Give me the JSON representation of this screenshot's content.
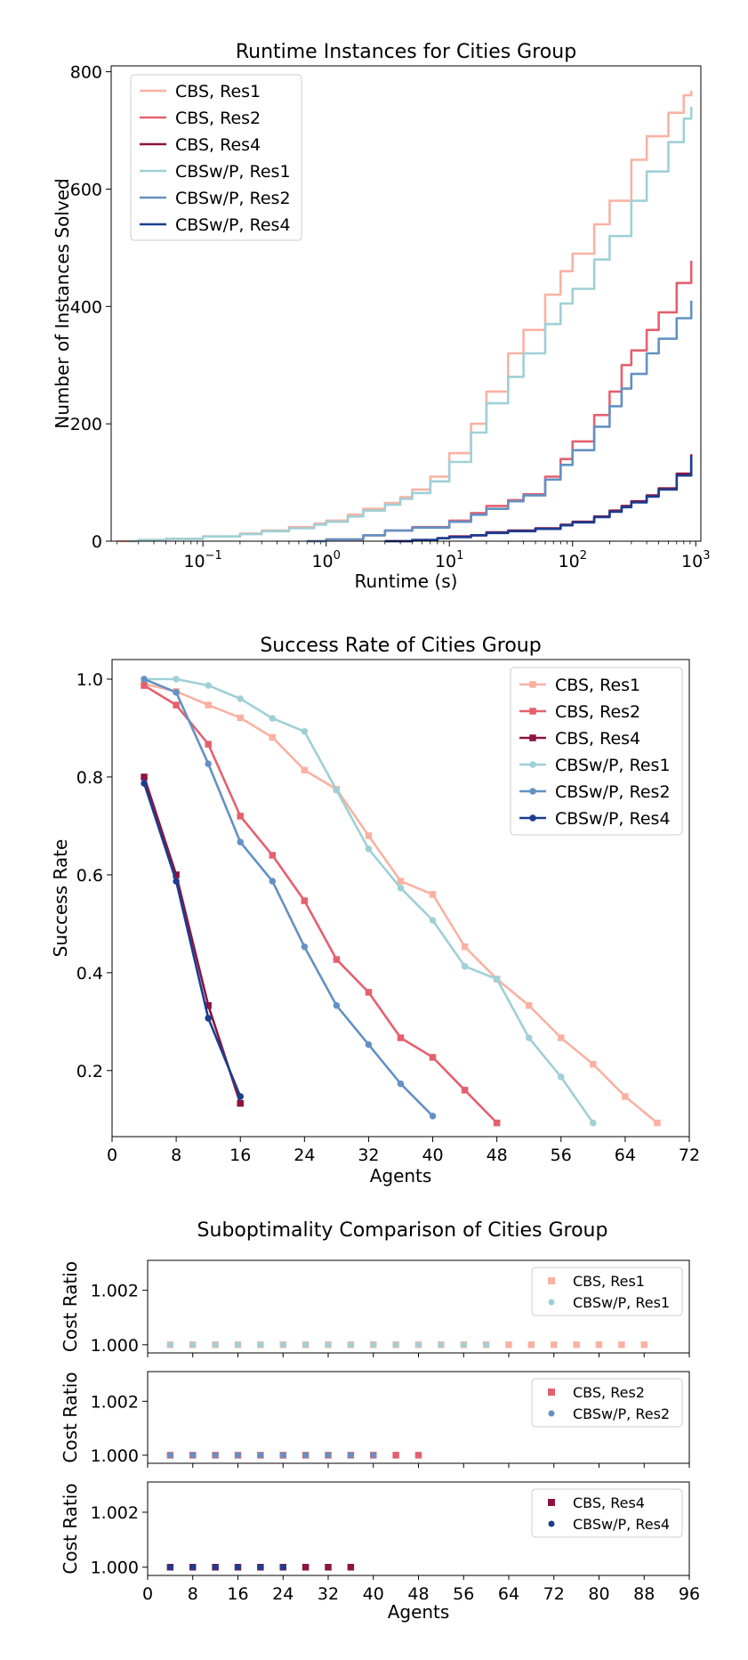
{
  "colors": {
    "cbs_res1": "#f9b2a2",
    "cbs_res2": "#e5606e",
    "cbs_res4": "#8b1440",
    "cbswp_res1": "#9fd0d6",
    "cbswp_res2": "#6391c3",
    "cbswp_res4": "#1a3d8f"
  },
  "chart_data": [
    {
      "type": "line",
      "title": "Runtime Instances for Cities Group",
      "xlabel": "Runtime (s)",
      "ylabel": "Number of Instances Solved",
      "xscale": "log",
      "xlim": [
        0.018,
        1100
      ],
      "ylim": [
        0,
        810
      ],
      "xtick_values": [
        0.1,
        1,
        10,
        100,
        1000
      ],
      "xtick_bases": [
        "10",
        "10",
        "10",
        "10",
        "10"
      ],
      "xtick_exps": [
        "−1",
        "0",
        "1",
        "2",
        "3"
      ],
      "yticks": [
        0,
        200,
        400,
        600,
        800
      ],
      "legend": "top-left",
      "series": [
        {
          "name": "CBS, Res1",
          "color_key": "cbs_res1",
          "points": [
            [
              0.02,
              0
            ],
            [
              0.03,
              2
            ],
            [
              0.05,
              4
            ],
            [
              0.1,
              8
            ],
            [
              0.2,
              13
            ],
            [
              0.3,
              18
            ],
            [
              0.5,
              24
            ],
            [
              0.8,
              30
            ],
            [
              1,
              35
            ],
            [
              1.5,
              45
            ],
            [
              2,
              55
            ],
            [
              3,
              65
            ],
            [
              4,
              75
            ],
            [
              5,
              88
            ],
            [
              7,
              110
            ],
            [
              10,
              150
            ],
            [
              15,
              200
            ],
            [
              20,
              255
            ],
            [
              30,
              320
            ],
            [
              40,
              360
            ],
            [
              60,
              420
            ],
            [
              80,
              460
            ],
            [
              100,
              490
            ],
            [
              150,
              540
            ],
            [
              200,
              580
            ],
            [
              300,
              650
            ],
            [
              400,
              690
            ],
            [
              600,
              730
            ],
            [
              800,
              760
            ],
            [
              920,
              768
            ]
          ]
        },
        {
          "name": "CBS, Res2",
          "color_key": "cbs_res2",
          "points": [
            [
              0.7,
              0
            ],
            [
              1,
              3
            ],
            [
              2,
              10
            ],
            [
              3,
              18
            ],
            [
              5,
              24
            ],
            [
              10,
              35
            ],
            [
              15,
              48
            ],
            [
              20,
              60
            ],
            [
              30,
              70
            ],
            [
              40,
              80
            ],
            [
              60,
              110
            ],
            [
              80,
              140
            ],
            [
              100,
              170
            ],
            [
              150,
              215
            ],
            [
              200,
              255
            ],
            [
              250,
              300
            ],
            [
              300,
              325
            ],
            [
              400,
              360
            ],
            [
              500,
              390
            ],
            [
              700,
              440
            ],
            [
              920,
              478
            ]
          ]
        },
        {
          "name": "CBS, Res4",
          "color_key": "cbs_res4",
          "points": [
            [
              3,
              0
            ],
            [
              5,
              2
            ],
            [
              8,
              5
            ],
            [
              10,
              8
            ],
            [
              15,
              10
            ],
            [
              20,
              15
            ],
            [
              30,
              18
            ],
            [
              50,
              22
            ],
            [
              80,
              28
            ],
            [
              100,
              33
            ],
            [
              150,
              42
            ],
            [
              200,
              52
            ],
            [
              250,
              60
            ],
            [
              300,
              68
            ],
            [
              400,
              78
            ],
            [
              500,
              90
            ],
            [
              700,
              115
            ],
            [
              920,
              148
            ]
          ]
        },
        {
          "name": "CBSw/P, Res1",
          "color_key": "cbswp_res1",
          "points": [
            [
              0.025,
              0
            ],
            [
              0.03,
              2
            ],
            [
              0.05,
              4
            ],
            [
              0.1,
              8
            ],
            [
              0.2,
              12
            ],
            [
              0.3,
              17
            ],
            [
              0.5,
              22
            ],
            [
              0.8,
              28
            ],
            [
              1,
              33
            ],
            [
              1.5,
              42
            ],
            [
              2,
              52
            ],
            [
              3,
              62
            ],
            [
              4,
              72
            ],
            [
              5,
              82
            ],
            [
              7,
              102
            ],
            [
              10,
              135
            ],
            [
              15,
              185
            ],
            [
              20,
              235
            ],
            [
              30,
              280
            ],
            [
              40,
              320
            ],
            [
              60,
              370
            ],
            [
              80,
              405
            ],
            [
              100,
              430
            ],
            [
              150,
              480
            ],
            [
              200,
              520
            ],
            [
              300,
              580
            ],
            [
              400,
              630
            ],
            [
              600,
              680
            ],
            [
              800,
              720
            ],
            [
              920,
              740
            ]
          ]
        },
        {
          "name": "CBSw/P, Res2",
          "color_key": "cbswp_res2",
          "points": [
            [
              0.7,
              0
            ],
            [
              1,
              3
            ],
            [
              2,
              10
            ],
            [
              3,
              18
            ],
            [
              5,
              23
            ],
            [
              10,
              33
            ],
            [
              15,
              45
            ],
            [
              20,
              55
            ],
            [
              30,
              68
            ],
            [
              40,
              78
            ],
            [
              60,
              105
            ],
            [
              80,
              130
            ],
            [
              100,
              155
            ],
            [
              150,
              195
            ],
            [
              200,
              230
            ],
            [
              250,
              260
            ],
            [
              300,
              285
            ],
            [
              400,
              320
            ],
            [
              500,
              345
            ],
            [
              700,
              380
            ],
            [
              920,
              410
            ]
          ]
        },
        {
          "name": "CBSw/P, Res4",
          "color_key": "cbswp_res4",
          "points": [
            [
              3,
              0
            ],
            [
              5,
              2
            ],
            [
              8,
              5
            ],
            [
              10,
              7
            ],
            [
              15,
              10
            ],
            [
              20,
              14
            ],
            [
              30,
              17
            ],
            [
              50,
              21
            ],
            [
              80,
              27
            ],
            [
              100,
              32
            ],
            [
              150,
              41
            ],
            [
              200,
              50
            ],
            [
              250,
              58
            ],
            [
              300,
              66
            ],
            [
              400,
              76
            ],
            [
              500,
              88
            ],
            [
              700,
              112
            ],
            [
              920,
              145
            ]
          ]
        }
      ]
    },
    {
      "type": "line",
      "title": "Success Rate of Cities Group",
      "xlabel": "Agents",
      "ylabel": "Success Rate",
      "xlim": [
        0,
        72
      ],
      "ylim": [
        0.065,
        1.04
      ],
      "xticks": [
        0,
        8,
        16,
        24,
        32,
        40,
        48,
        56,
        64,
        72
      ],
      "ytick_values": [
        0.2,
        0.4,
        0.6,
        0.8,
        1.0
      ],
      "ytick_labels": [
        "0.2",
        "0.4",
        "0.6",
        "0.8",
        "1.0"
      ],
      "legend": "top-right",
      "series": [
        {
          "name": "CBS, Res1",
          "color_key": "cbs_res1",
          "marker": "square",
          "x": [
            4,
            8,
            12,
            16,
            20,
            24,
            28,
            32,
            36,
            40,
            44,
            48,
            52,
            56,
            60,
            64,
            68
          ],
          "y": [
            0.99,
            0.975,
            0.947,
            0.921,
            0.881,
            0.814,
            0.775,
            0.68,
            0.587,
            0.56,
            0.453,
            0.387,
            0.333,
            0.267,
            0.213,
            0.147,
            0.093
          ]
        },
        {
          "name": "CBS, Res2",
          "color_key": "cbs_res2",
          "marker": "square",
          "x": [
            4,
            8,
            12,
            16,
            20,
            24,
            28,
            32,
            36,
            40,
            44,
            48
          ],
          "y": [
            0.987,
            0.947,
            0.867,
            0.72,
            0.64,
            0.547,
            0.427,
            0.36,
            0.267,
            0.227,
            0.16,
            0.093
          ]
        },
        {
          "name": "CBS, Res4",
          "color_key": "cbs_res4",
          "marker": "square",
          "x": [
            4,
            8,
            12,
            16
          ],
          "y": [
            0.8,
            0.6,
            0.333,
            0.133
          ]
        },
        {
          "name": "CBSw/P, Res1",
          "color_key": "cbswp_res1",
          "marker": "circle",
          "x": [
            4,
            8,
            12,
            16,
            20,
            24,
            28,
            32,
            36,
            40,
            44,
            48,
            52,
            56,
            60
          ],
          "y": [
            1.0,
            1.0,
            0.987,
            0.96,
            0.92,
            0.893,
            0.773,
            0.653,
            0.573,
            0.507,
            0.413,
            0.387,
            0.267,
            0.187,
            0.093
          ]
        },
        {
          "name": "CBSw/P, Res2",
          "color_key": "cbswp_res2",
          "marker": "circle",
          "x": [
            4,
            8,
            12,
            16,
            20,
            24,
            28,
            32,
            36,
            40
          ],
          "y": [
            1.0,
            0.973,
            0.827,
            0.667,
            0.587,
            0.453,
            0.333,
            0.253,
            0.173,
            0.107
          ]
        },
        {
          "name": "CBSw/P, Res4",
          "color_key": "cbswp_res4",
          "marker": "circle",
          "x": [
            4,
            8,
            12,
            16
          ],
          "y": [
            0.787,
            0.587,
            0.307,
            0.147
          ]
        }
      ]
    },
    {
      "type": "scatter",
      "title": "Suboptimality Comparison of Cities Group",
      "xlabel": "Agents",
      "ylabel": "Cost Ratio",
      "xlim": [
        0,
        96
      ],
      "ylim": [
        0.9997,
        1.0031
      ],
      "xticks": [
        0,
        8,
        16,
        24,
        32,
        40,
        48,
        56,
        64,
        72,
        80,
        88,
        96
      ],
      "ytick_values": [
        1.0,
        1.002
      ],
      "ytick_labels": [
        "1.000",
        "1.002"
      ],
      "panels": [
        {
          "legend": "top-right",
          "series": [
            {
              "name": "CBS, Res1",
              "color_key": "cbs_res1",
              "marker": "square",
              "x": [
                4,
                8,
                12,
                16,
                20,
                24,
                28,
                32,
                36,
                40,
                44,
                48,
                52,
                56,
                60,
                64,
                68,
                72,
                76,
                80,
                84,
                88
              ],
              "y": [
                1,
                1,
                1,
                1,
                1,
                1,
                1,
                1,
                1,
                1,
                1,
                1,
                1,
                1,
                1,
                1,
                1,
                1,
                1,
                1,
                1,
                1
              ]
            },
            {
              "name": "CBSw/P, Res1",
              "color_key": "cbswp_res1",
              "marker": "circle",
              "x": [
                4,
                8,
                12,
                16,
                20,
                24,
                28,
                32,
                36,
                40,
                44,
                48,
                52,
                56,
                60
              ],
              "y": [
                1,
                1,
                1,
                1,
                1,
                1,
                1,
                1,
                1,
                1,
                1,
                1,
                1,
                1,
                1
              ]
            }
          ]
        },
        {
          "legend": "top-right",
          "series": [
            {
              "name": "CBS, Res2",
              "color_key": "cbs_res2",
              "marker": "square",
              "x": [
                4,
                8,
                12,
                16,
                20,
                24,
                28,
                32,
                36,
                40,
                44,
                48
              ],
              "y": [
                1,
                1,
                1,
                1,
                1,
                1,
                1,
                1,
                1,
                1,
                1,
                1
              ]
            },
            {
              "name": "CBSw/P, Res2",
              "color_key": "cbswp_res2",
              "marker": "circle",
              "x": [
                4,
                8,
                12,
                16,
                20,
                24,
                28,
                32,
                36,
                40
              ],
              "y": [
                1,
                1,
                1,
                1,
                1,
                1,
                1,
                1,
                1,
                1
              ]
            }
          ]
        },
        {
          "legend": "top-right",
          "series": [
            {
              "name": "CBS, Res4",
              "color_key": "cbs_res4",
              "marker": "square",
              "x": [
                4,
                8,
                12,
                16,
                20,
                24,
                28,
                32,
                36
              ],
              "y": [
                1,
                1,
                1,
                1,
                1,
                1,
                1,
                1,
                1
              ]
            },
            {
              "name": "CBSw/P, Res4",
              "color_key": "cbswp_res4",
              "marker": "circle",
              "x": [
                4,
                8,
                12,
                16,
                20,
                24
              ],
              "y": [
                1,
                1,
                1,
                1,
                1,
                1
              ]
            }
          ]
        }
      ]
    }
  ]
}
